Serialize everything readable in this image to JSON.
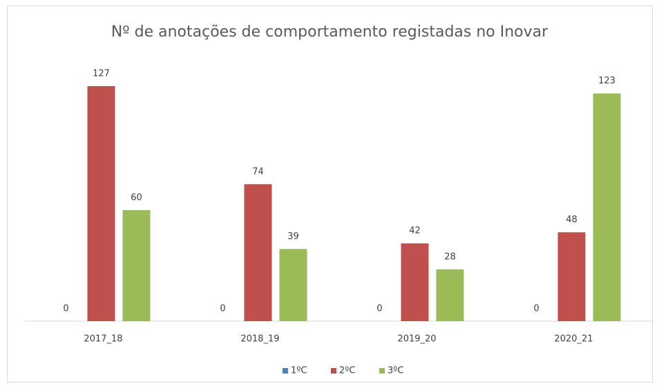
{
  "chart_data": {
    "type": "bar",
    "title": "Nº de anotações de comportamento registadas no Inovar",
    "categories": [
      "2017_18",
      "2018_19",
      "2019_20",
      "2020_21"
    ],
    "series": [
      {
        "name": "1ºC",
        "color": "#4f81bd",
        "values": [
          0,
          0,
          0,
          0
        ]
      },
      {
        "name": "2ºC",
        "color": "#c0504d",
        "values": [
          127,
          74,
          42,
          48
        ]
      },
      {
        "name": "3ºC",
        "color": "#9bbb59",
        "values": [
          60,
          39,
          28,
          123
        ]
      }
    ],
    "ylim": [
      0,
      140
    ],
    "legend": "bottom"
  }
}
